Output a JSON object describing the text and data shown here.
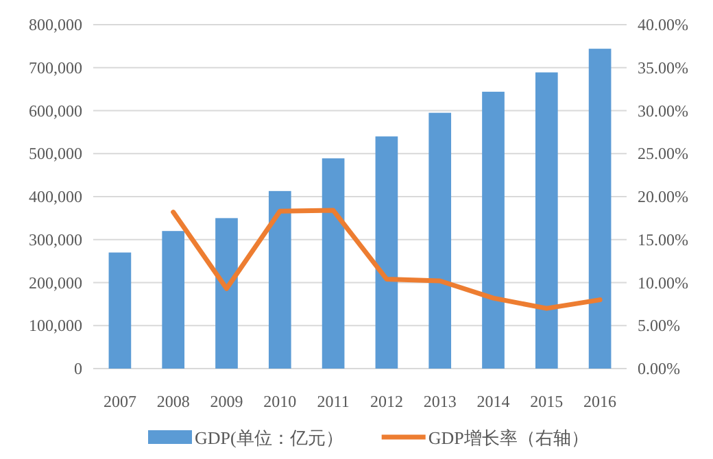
{
  "chart_data": {
    "type": "bar",
    "categories": [
      "2007",
      "2008",
      "2009",
      "2010",
      "2011",
      "2012",
      "2013",
      "2014",
      "2015",
      "2016"
    ],
    "series": [
      {
        "name": "GDP(单位：亿元）",
        "color": "#5b9bd5",
        "values": [
          270000,
          320000,
          350000,
          413000,
          489000,
          540000,
          595000,
          644000,
          689000,
          744000
        ]
      },
      {
        "name": "GDP增长率（右轴）",
        "type": "line",
        "axis": "y2",
        "color": "#ed7d31",
        "values": [
          null,
          18.2,
          9.3,
          18.3,
          18.4,
          10.4,
          10.2,
          8.2,
          7.0,
          8.0
        ]
      }
    ],
    "ylim": [
      0,
      800000
    ],
    "yticks": [
      {
        "value": 0,
        "label": "0"
      },
      {
        "value": 100000,
        "label": "100,000"
      },
      {
        "value": 200000,
        "label": "200,000"
      },
      {
        "value": 300000,
        "label": "300,000"
      },
      {
        "value": 400000,
        "label": "400,000"
      },
      {
        "value": 500000,
        "label": "500,000"
      },
      {
        "value": 600000,
        "label": "600,000"
      },
      {
        "value": 700000,
        "label": "700,000"
      },
      {
        "value": 800000,
        "label": "800,000"
      }
    ],
    "y2lim": [
      0,
      40
    ],
    "y2ticks": [
      {
        "value": 0,
        "label": "0.00%"
      },
      {
        "value": 5,
        "label": "5.00%"
      },
      {
        "value": 10,
        "label": "10.00%"
      },
      {
        "value": 15,
        "label": "15.00%"
      },
      {
        "value": 20,
        "label": "20.00%"
      },
      {
        "value": 25,
        "label": "25.00%"
      },
      {
        "value": 30,
        "label": "30.00%"
      },
      {
        "value": 35,
        "label": "35.00%"
      },
      {
        "value": 40,
        "label": "40.00%"
      }
    ],
    "grid": "y",
    "legend": "bottom"
  }
}
